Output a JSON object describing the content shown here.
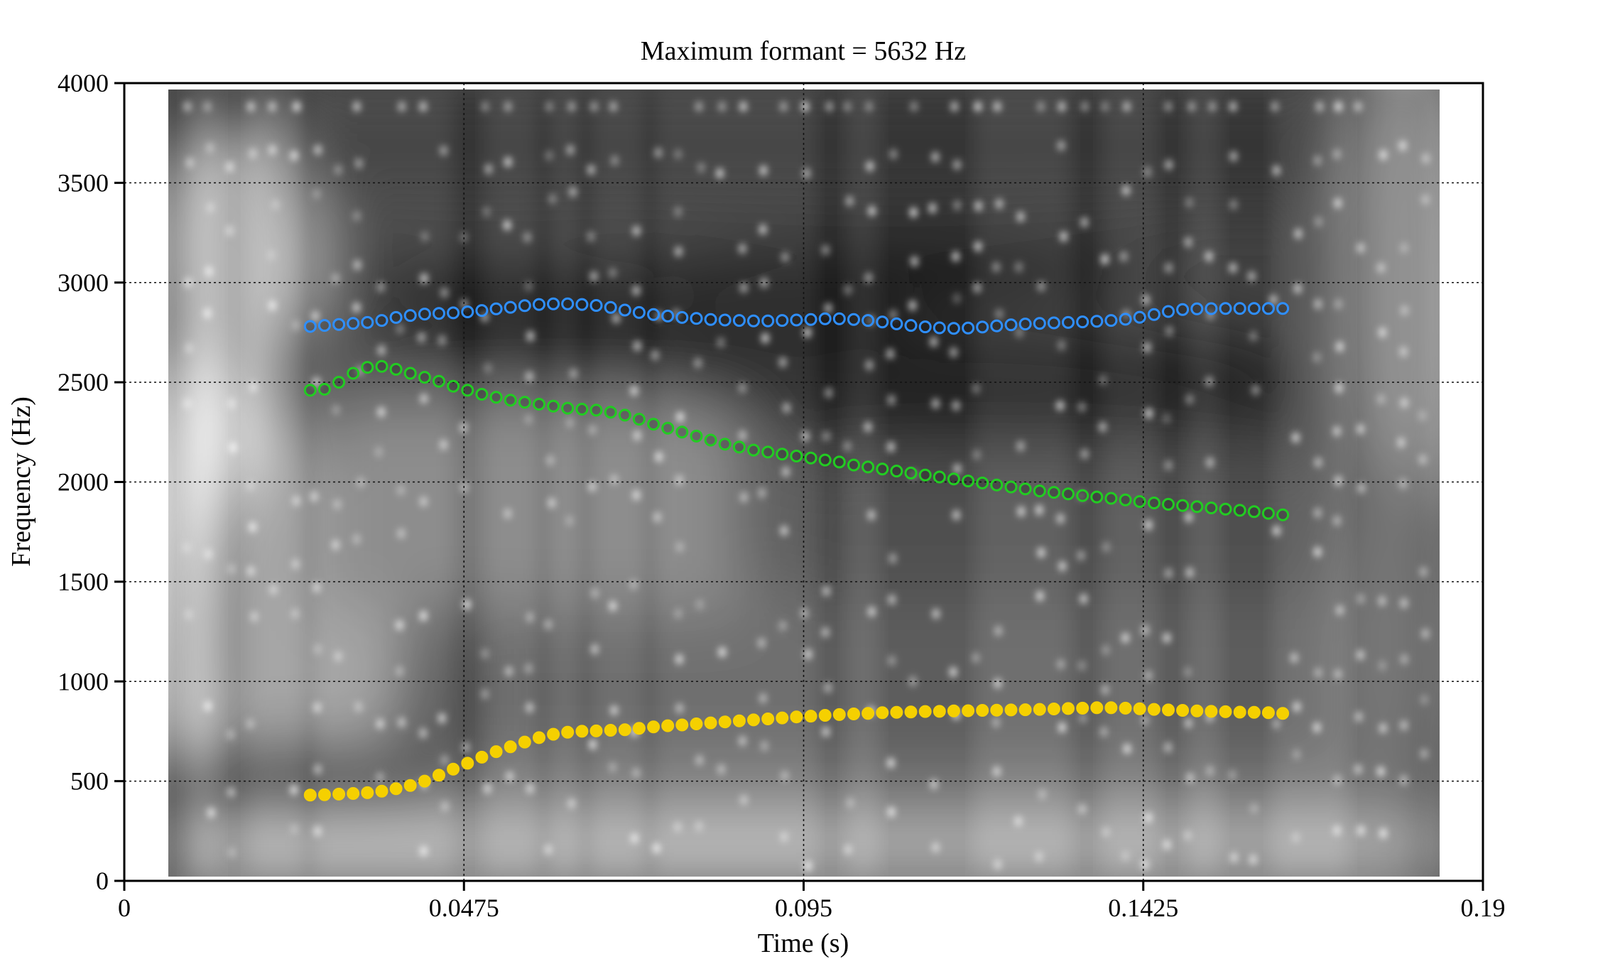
{
  "chart_data": {
    "type": "scatter",
    "title": "Maximum formant  =  5632 Hz",
    "xlabel": "Time (s)",
    "ylabel": "Frequency (Hz)",
    "xlim": [
      0,
      0.19
    ],
    "ylim": [
      0,
      4000
    ],
    "xticks": [
      0,
      0.0475,
      0.095,
      0.1425,
      0.19
    ],
    "xtick_labels": [
      "0",
      "0.0475",
      "0.095",
      "0.1425",
      "0.19"
    ],
    "yticks": [
      0,
      500,
      1000,
      1500,
      2000,
      2500,
      3000,
      3500,
      4000
    ],
    "ytick_labels": [
      "0",
      "500",
      "1000",
      "1500",
      "2000",
      "2500",
      "3000",
      "3500",
      "4000"
    ],
    "grid": true,
    "background": "grayscale spectrogram",
    "x": [
      0.026,
      0.028,
      0.03,
      0.032,
      0.034,
      0.036,
      0.038,
      0.04,
      0.042,
      0.044,
      0.046,
      0.048,
      0.05,
      0.052,
      0.054,
      0.056,
      0.058,
      0.06,
      0.062,
      0.064,
      0.066,
      0.068,
      0.07,
      0.072,
      0.074,
      0.076,
      0.078,
      0.08,
      0.082,
      0.084,
      0.086,
      0.088,
      0.09,
      0.092,
      0.094,
      0.096,
      0.098,
      0.1,
      0.102,
      0.104,
      0.106,
      0.108,
      0.11,
      0.112,
      0.114,
      0.116,
      0.118,
      0.12,
      0.122,
      0.124,
      0.126,
      0.128,
      0.13,
      0.132,
      0.134,
      0.136,
      0.138,
      0.14,
      0.142,
      0.144,
      0.146,
      0.148,
      0.15,
      0.152,
      0.154,
      0.156,
      0.158,
      0.16,
      0.162
    ],
    "series": [
      {
        "color": "#f5d000",
        "values": [
          430,
          432,
          435,
          438,
          442,
          450,
          462,
          478,
          500,
          530,
          560,
          590,
          620,
          648,
          672,
          696,
          718,
          735,
          745,
          750,
          752,
          755,
          758,
          765,
          772,
          778,
          782,
          787,
          792,
          797,
          802,
          807,
          812,
          817,
          822,
          826,
          830,
          834,
          837,
          840,
          843,
          845,
          847,
          849,
          850,
          852,
          853,
          855,
          856,
          857,
          858,
          860,
          862,
          864,
          866,
          868,
          868,
          866,
          863,
          860,
          857,
          855,
          852,
          850,
          848,
          846,
          845,
          843,
          840
        ]
      },
      {
        "color": "#22cc22",
        "values": [
          2460,
          2465,
          2500,
          2545,
          2575,
          2580,
          2565,
          2545,
          2525,
          2505,
          2480,
          2460,
          2440,
          2425,
          2410,
          2400,
          2390,
          2380,
          2370,
          2365,
          2360,
          2350,
          2335,
          2315,
          2290,
          2270,
          2250,
          2230,
          2210,
          2190,
          2175,
          2160,
          2150,
          2140,
          2130,
          2120,
          2110,
          2100,
          2085,
          2075,
          2065,
          2055,
          2045,
          2035,
          2025,
          2015,
          2005,
          1995,
          1985,
          1975,
          1965,
          1955,
          1948,
          1940,
          1932,
          1925,
          1918,
          1910,
          1902,
          1895,
          1888,
          1882,
          1876,
          1870,
          1864,
          1858,
          1851,
          1843,
          1835
        ]
      },
      {
        "color": "#2f8fff",
        "values": [
          2780,
          2785,
          2790,
          2795,
          2800,
          2810,
          2825,
          2835,
          2842,
          2845,
          2848,
          2853,
          2860,
          2868,
          2876,
          2884,
          2890,
          2893,
          2893,
          2890,
          2885,
          2875,
          2862,
          2850,
          2840,
          2832,
          2825,
          2820,
          2815,
          2812,
          2810,
          2808,
          2808,
          2810,
          2812,
          2815,
          2818,
          2818,
          2815,
          2810,
          2802,
          2793,
          2785,
          2778,
          2773,
          2770,
          2772,
          2777,
          2783,
          2788,
          2792,
          2795,
          2798,
          2800,
          2803,
          2806,
          2810,
          2816,
          2826,
          2840,
          2855,
          2865,
          2868,
          2869,
          2870,
          2870,
          2870,
          2870,
          2870
        ]
      }
    ]
  }
}
